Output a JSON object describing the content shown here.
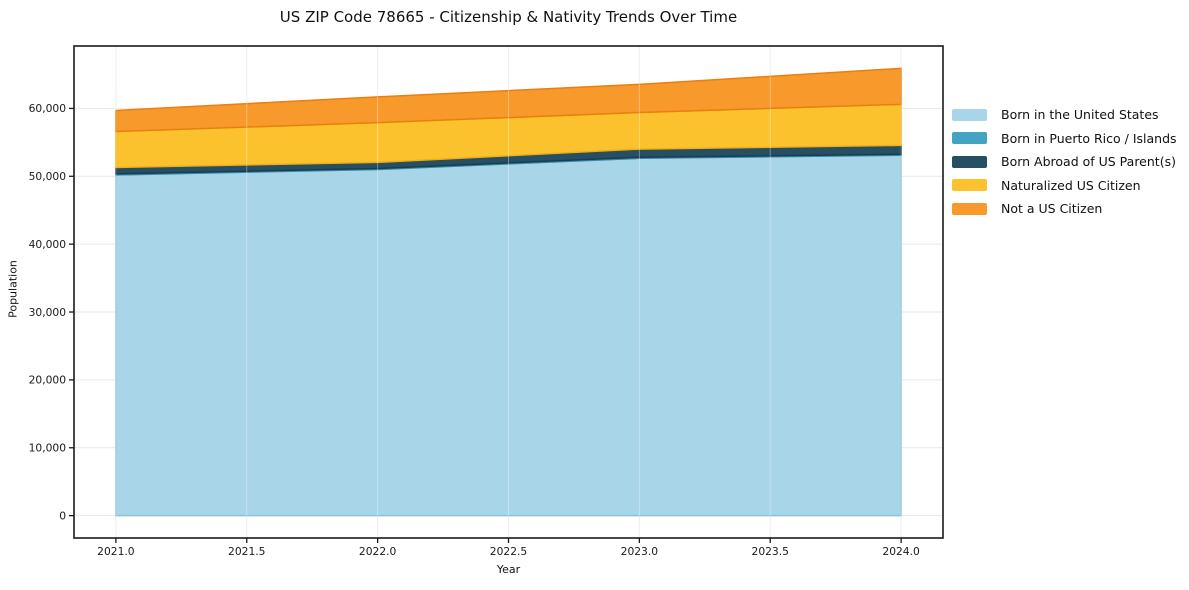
{
  "chart_data": {
    "type": "area",
    "stacked": true,
    "title": "US ZIP Code 78665 - Citizenship & Nativity Trends Over Time",
    "xlabel": "Year",
    "ylabel": "Population",
    "x": [
      2021,
      2022,
      2023,
      2024
    ],
    "series": [
      {
        "name": "Born in the United States",
        "color": "#a8d5e8",
        "edge": "#8bc4dc",
        "values": [
          50200,
          51000,
          52650,
          53100
        ]
      },
      {
        "name": "Born in Puerto Rico / Islands",
        "color": "#42a3c2",
        "edge": "#328ba9",
        "values": [
          150,
          150,
          150,
          150
        ]
      },
      {
        "name": "Born Abroad of US Parent(s)",
        "color": "#274f63",
        "edge": "#1b3c4e",
        "values": [
          950,
          900,
          1200,
          1300
        ]
      },
      {
        "name": "Naturalized US Citizen",
        "color": "#fcc22e",
        "edge": "#f3ae14",
        "values": [
          5300,
          5850,
          5400,
          6050
        ]
      },
      {
        "name": "Not a US Citizen",
        "color": "#f8992c",
        "edge": "#e97f0f",
        "values": [
          3100,
          3800,
          4150,
          5300
        ]
      }
    ],
    "totals_by_year": [
      59700,
      61700,
      63550,
      65900
    ],
    "xlim": [
      2020.84,
      2024.16
    ],
    "ylim": [
      -3295,
      69195
    ],
    "xticks": {
      "values": [
        2021.0,
        2021.5,
        2022.0,
        2022.5,
        2023.0,
        2023.5,
        2024.0
      ],
      "labels": [
        "2021.0",
        "2021.5",
        "2022.0",
        "2022.5",
        "2023.0",
        "2023.5",
        "2024.0"
      ]
    },
    "yticks": {
      "values": [
        0,
        10000,
        20000,
        30000,
        40000,
        50000,
        60000
      ],
      "labels": [
        "0",
        "10,000",
        "20,000",
        "30,000",
        "40,000",
        "50,000",
        "60,000"
      ]
    },
    "grid": true,
    "grid_color": "#e7e7e7",
    "spine_color": "#1a1a1a",
    "legend_position": "right-outside"
  }
}
